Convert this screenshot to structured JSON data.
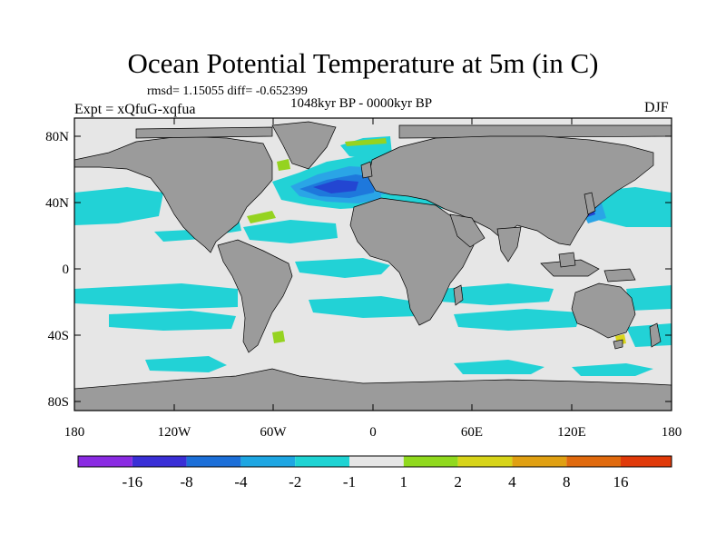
{
  "title": "Ocean Potential Temperature at 5m (in C)",
  "stats": "rmsd= 1.15055 diff= -0.652399",
  "period": "1048kyr BP - 0000kyr BP",
  "experiment": "Expt = xQfuG-xqfua",
  "season": "DJF",
  "y_ticks": [
    "80N",
    "40N",
    "0",
    "40S",
    "80S"
  ],
  "x_ticks": [
    "180",
    "120W",
    "60W",
    "0",
    "60E",
    "120E",
    "180"
  ],
  "colorbar": {
    "labels": [
      "-16",
      "-8",
      "-4",
      "-2",
      "-1",
      "1",
      "2",
      "4",
      "8",
      "16"
    ],
    "colors": [
      "#8a2be2",
      "#3a2fd6",
      "#1c6fd8",
      "#1ea6e2",
      "#1fd3d3",
      "#e6e6e6",
      "#90d91e",
      "#d7d41a",
      "#e0a012",
      "#e06a0e",
      "#e03a0a"
    ]
  },
  "colors": {
    "land": "#9b9b9b",
    "neutral_ocean": "#e6e6e6",
    "cyan": "#22d2d6",
    "light_blue": "#2aa5e6",
    "blue": "#1e78dc",
    "dark_blue": "#2346d2",
    "green": "#95d320",
    "yellow": "#d9d51a",
    "orange": "#e0a012"
  }
}
